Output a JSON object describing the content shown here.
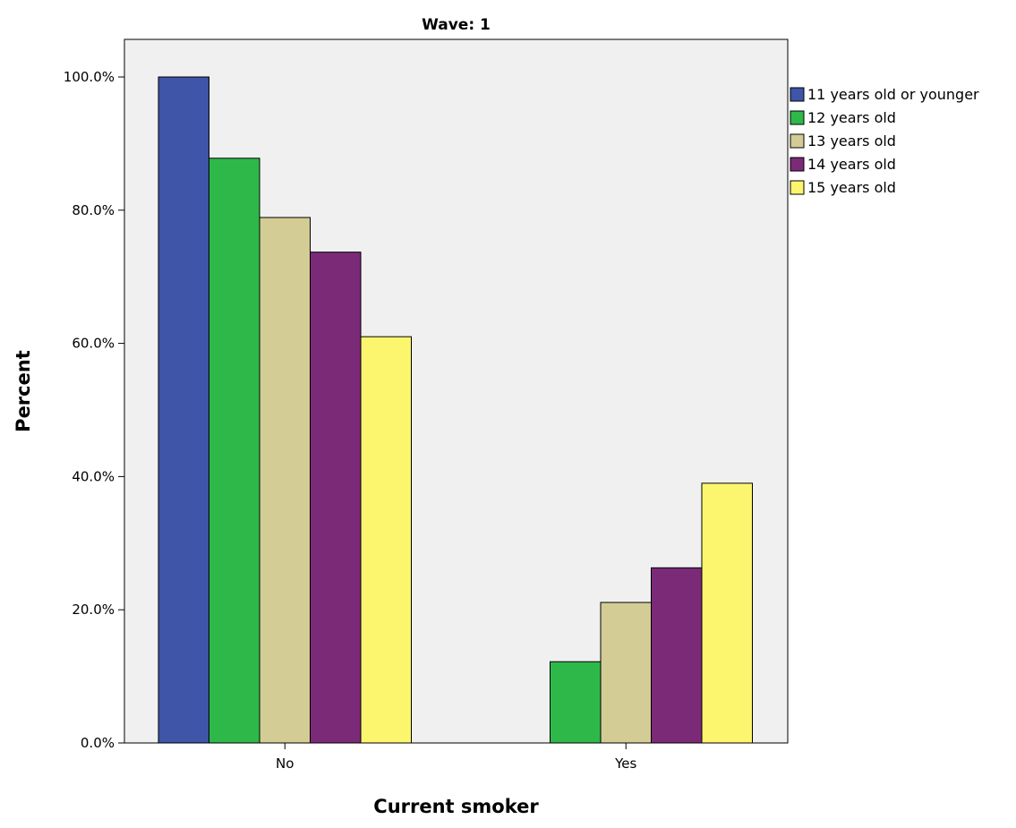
{
  "chart_data": {
    "type": "bar",
    "title": "Wave: 1",
    "xlabel": "Current smoker",
    "ylabel": "Percent",
    "categories": [
      "No",
      "Yes"
    ],
    "ylim": [
      0,
      100
    ],
    "y_ticks": [
      "0.0%",
      "20.0%",
      "40.0%",
      "60.0%",
      "80.0%",
      "100.0%"
    ],
    "grid": false,
    "legend_position": "right",
    "series": [
      {
        "name": "11 years old or younger",
        "color": "#3e55a8",
        "values": [
          100.0,
          0.0
        ]
      },
      {
        "name": "12 years old",
        "color": "#2fb84a",
        "values": [
          87.8,
          12.2
        ]
      },
      {
        "name": "13 years old",
        "color": "#d3cc95",
        "values": [
          78.9,
          21.1
        ]
      },
      {
        "name": "14 years old",
        "color": "#7b2a78",
        "values": [
          73.7,
          26.3
        ]
      },
      {
        "name": "15 years old",
        "color": "#fbf66e",
        "values": [
          61.0,
          39.0
        ]
      }
    ],
    "plot_background": "#f0f0f0"
  }
}
